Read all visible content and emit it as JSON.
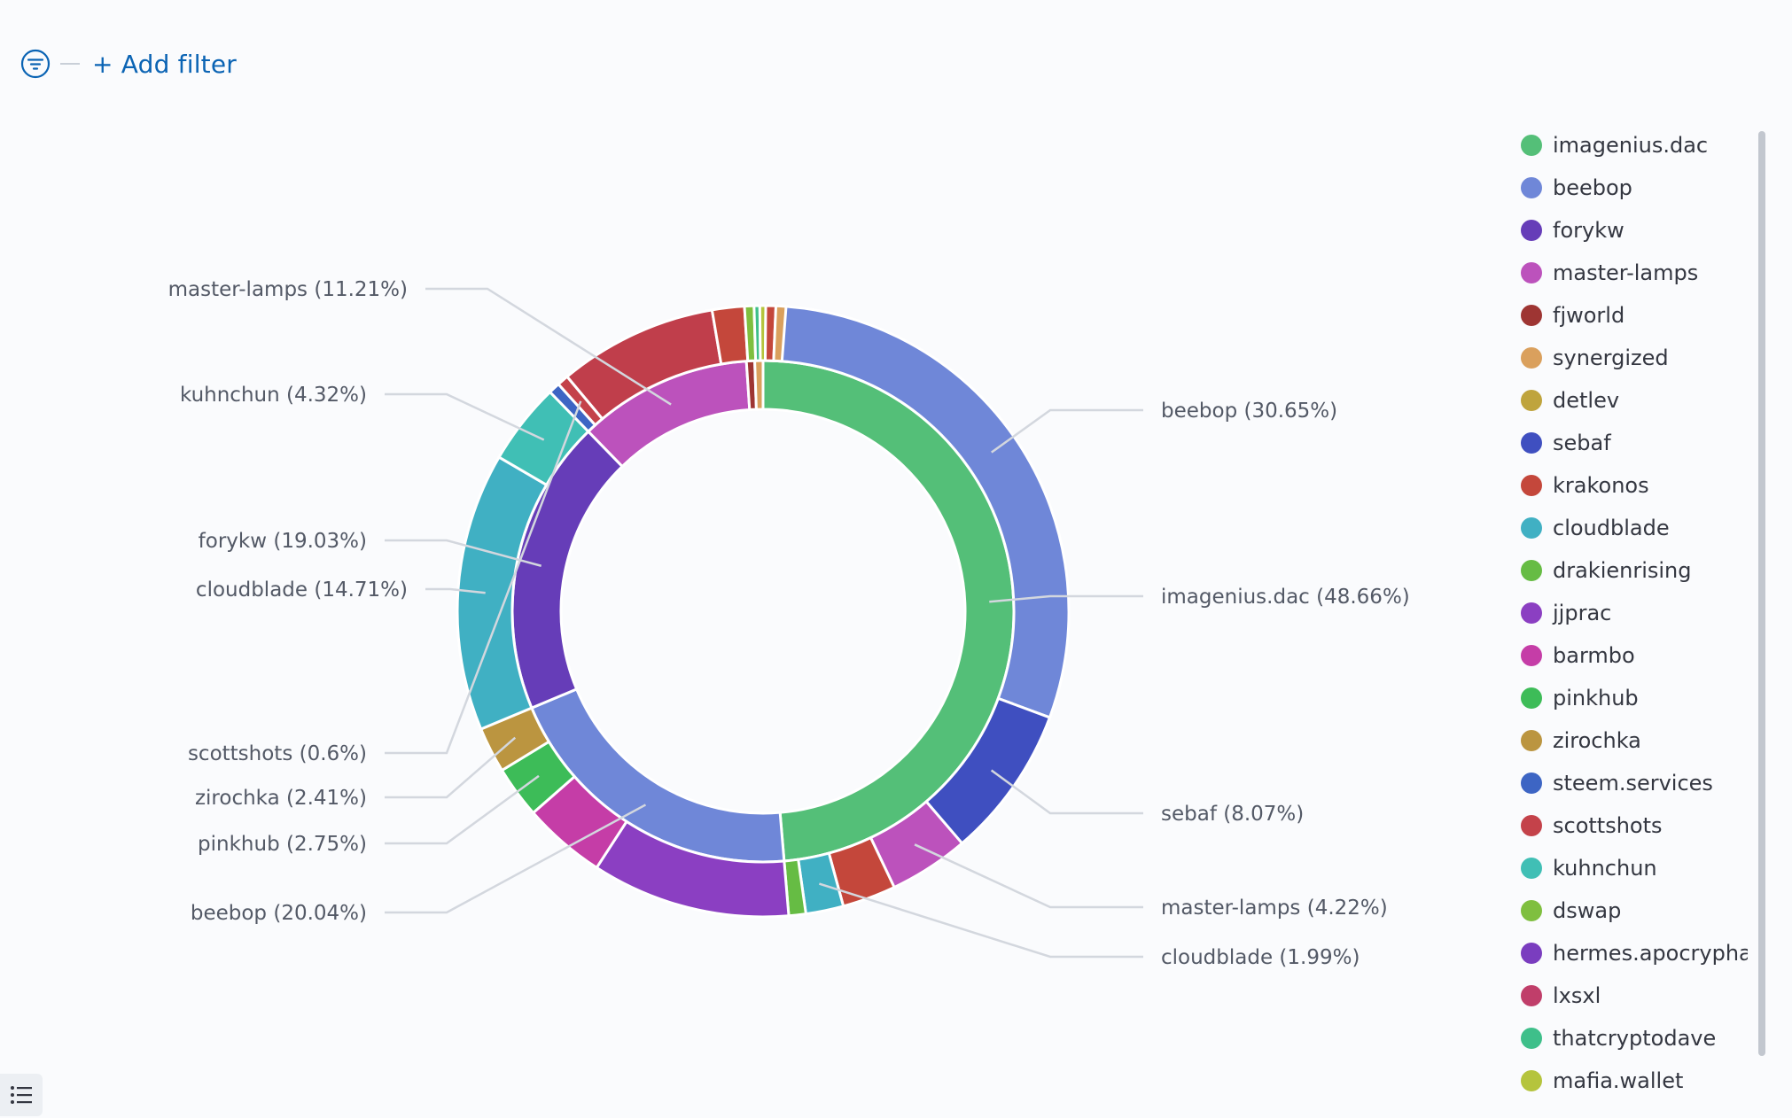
{
  "toolbar": {
    "add_filter_label": "+ Add filter",
    "filter_icon": "filter-icon",
    "list_icon": "list-icon"
  },
  "chart_data": {
    "type": "pie",
    "variant": "two-level donut",
    "inner_ring": [
      {
        "label": "imagenius.dac",
        "value": 48.66,
        "color": "#54bf78"
      },
      {
        "label": "beebop",
        "value": 20.04,
        "color": "#6f87d8"
      },
      {
        "label": "forykw",
        "value": 19.03,
        "color": "#663db8"
      },
      {
        "label": "master-lamps",
        "value": 11.21,
        "color": "#bc52bc"
      },
      {
        "label": "fjworld",
        "value": 0.53,
        "color": "#9e3533"
      },
      {
        "label": "synergized",
        "value": 0.53,
        "color": "#daa05d"
      }
    ],
    "outer_ring": [
      {
        "label": "beebop",
        "value": 30.65,
        "color": "#6f87d8",
        "parent": "imagenius.dac"
      },
      {
        "label": "sebaf",
        "value": 8.07,
        "color": "#3f4fc0",
        "parent": "imagenius.dac"
      },
      {
        "label": "master-lamps",
        "value": 4.22,
        "color": "#bc52bc",
        "parent": "imagenius.dac"
      },
      {
        "label": "krakonos",
        "value": 2.83,
        "color": "#c4473b",
        "parent": "imagenius.dac"
      },
      {
        "label": "cloudblade",
        "value": 1.99,
        "color": "#40b0c3",
        "parent": "imagenius.dac"
      },
      {
        "label": "drakienrising",
        "value": 0.9,
        "color": "#66bc44",
        "parent": "imagenius.dac"
      },
      {
        "label": "jjprac",
        "value": 10.5,
        "color": "#8b3fc2",
        "parent": "beebop"
      },
      {
        "label": "barmbo",
        "value": 4.38,
        "color": "#c53da7",
        "parent": "beebop"
      },
      {
        "label": "pinkhub",
        "value": 2.75,
        "color": "#3dbc58",
        "parent": "beebop"
      },
      {
        "label": "zirochka",
        "value": 2.41,
        "color": "#bb9540",
        "parent": "beebop"
      },
      {
        "label": "cloudblade",
        "value": 14.71,
        "color": "#40b0c3",
        "parent": "forykw"
      },
      {
        "label": "kuhnchun",
        "value": 4.32,
        "color": "#40bfb5",
        "parent": "forykw"
      },
      {
        "label": "steem.services",
        "value": 0.6,
        "color": "#3d65c4",
        "parent": "forykw"
      },
      {
        "label": "scottshots",
        "value": 0.6,
        "color": "#c4424a",
        "parent": "forykw"
      },
      {
        "label": "lxsxl",
        "value": 8.4,
        "color": "#c03e4b",
        "parent": "master-lamps"
      },
      {
        "label": "krakonos",
        "value": 1.7,
        "color": "#c4473b",
        "parent": "master-lamps"
      },
      {
        "label": "dswap",
        "value": 0.5,
        "color": "#7fbf3f",
        "parent": "master-lamps"
      },
      {
        "label": "thatcryptodave",
        "value": 0.3,
        "color": "#3ebf8a",
        "parent": "master-lamps"
      },
      {
        "label": "mafia.wallet",
        "value": 0.31,
        "color": "#b5c43d",
        "parent": "master-lamps"
      },
      {
        "label": "",
        "value": 0.53,
        "color": "#c4473b",
        "parent": "fjworld"
      },
      {
        "label": "",
        "value": 0.53,
        "color": "#daa05d",
        "parent": "synergized"
      }
    ],
    "annotations": [
      {
        "text": "master-lamps (11.21%)",
        "ring": "inner",
        "index": 3
      },
      {
        "text": "kuhnchun (4.32%)",
        "ring": "outer",
        "index": 11
      },
      {
        "text": "forykw (19.03%)",
        "ring": "inner",
        "index": 2
      },
      {
        "text": "cloudblade (14.71%)",
        "ring": "outer",
        "index": 10
      },
      {
        "text": "scottshots (0.6%)",
        "ring": "outer",
        "index": 13
      },
      {
        "text": "zirochka (2.41%)",
        "ring": "outer",
        "index": 9
      },
      {
        "text": "pinkhub (2.75%)",
        "ring": "outer",
        "index": 8
      },
      {
        "text": "beebop (20.04%)",
        "ring": "inner",
        "index": 1
      },
      {
        "text": "beebop (30.65%)",
        "ring": "outer",
        "index": 0
      },
      {
        "text": "imagenius.dac (48.66%)",
        "ring": "inner",
        "index": 0
      },
      {
        "text": "sebaf (8.07%)",
        "ring": "outer",
        "index": 1
      },
      {
        "text": "master-lamps (4.22%)",
        "ring": "outer",
        "index": 2
      },
      {
        "text": "cloudblade (1.99%)",
        "ring": "outer",
        "index": 4
      }
    ],
    "legend_position": "right",
    "legend": [
      {
        "label": "imagenius.dac",
        "color": "#54bf78"
      },
      {
        "label": "beebop",
        "color": "#6f87d8"
      },
      {
        "label": "forykw",
        "color": "#663db8"
      },
      {
        "label": "master-lamps",
        "color": "#bc52bc"
      },
      {
        "label": "fjworld",
        "color": "#9e3533"
      },
      {
        "label": "synergized",
        "color": "#daa05d"
      },
      {
        "label": "detlev",
        "color": "#bfa43d"
      },
      {
        "label": "sebaf",
        "color": "#3f4fc0"
      },
      {
        "label": "krakonos",
        "color": "#c4473b"
      },
      {
        "label": "cloudblade",
        "color": "#40b0c3"
      },
      {
        "label": "drakienrising",
        "color": "#66bc44"
      },
      {
        "label": "jjprac",
        "color": "#8b3fc2"
      },
      {
        "label": "barmbo",
        "color": "#c53da7"
      },
      {
        "label": "pinkhub",
        "color": "#3dbc58"
      },
      {
        "label": "zirochka",
        "color": "#bb9540"
      },
      {
        "label": "steem.services",
        "color": "#3d65c4"
      },
      {
        "label": "scottshots",
        "color": "#c4424a"
      },
      {
        "label": "kuhnchun",
        "color": "#40bfb5"
      },
      {
        "label": "dswap",
        "color": "#7fbf3f"
      },
      {
        "label": "hermes.apocrypha",
        "color": "#7a3dbf"
      },
      {
        "label": "lxsxl",
        "color": "#c03e6a"
      },
      {
        "label": "thatcryptodave",
        "color": "#3ebf8a"
      },
      {
        "label": "mafia.wallet",
        "color": "#b5c43d"
      }
    ]
  }
}
